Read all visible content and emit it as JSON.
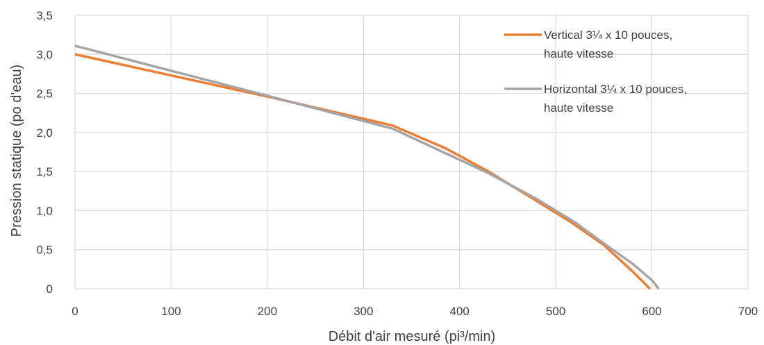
{
  "chart_data": {
    "type": "line",
    "xlabel": "Débit d'air mesuré (pi³/min)",
    "ylabel": "Pression statique (po d'eau)",
    "xlim": [
      0,
      700
    ],
    "ylim": [
      0,
      3.5
    ],
    "x_ticks": [
      "0",
      "100",
      "200",
      "300",
      "400",
      "500",
      "600",
      "700"
    ],
    "y_ticks": [
      "0",
      "0,5",
      "1,0",
      "1,5",
      "2,0",
      "2,5",
      "3,0",
      "3,5"
    ],
    "grid": true,
    "legend_position": "top-right",
    "series": [
      {
        "name": "Vertical 3¼ x 10 pouces, haute vitesse",
        "legend_lines": [
          "Vertical 3¼ x 10 pouces,",
          "haute vitesse"
        ],
        "color": "#ED7D31",
        "points": [
          [
            0,
            3.0
          ],
          [
            100,
            2.73
          ],
          [
            200,
            2.46
          ],
          [
            330,
            2.09
          ],
          [
            385,
            1.8
          ],
          [
            430,
            1.5
          ],
          [
            470,
            1.2
          ],
          [
            515,
            0.86
          ],
          [
            550,
            0.56
          ],
          [
            580,
            0.22
          ],
          [
            598,
            0.0
          ]
        ]
      },
      {
        "name": "Horizontal 3¼ x 10 pouces, haute vitesse",
        "legend_lines": [
          "Horizontal 3¼ x 10 pouces,",
          "haute vitesse"
        ],
        "color": "#A5A5A5",
        "points": [
          [
            0,
            3.11
          ],
          [
            100,
            2.79
          ],
          [
            200,
            2.47
          ],
          [
            330,
            2.05
          ],
          [
            430,
            1.48
          ],
          [
            480,
            1.15
          ],
          [
            520,
            0.85
          ],
          [
            550,
            0.58
          ],
          [
            580,
            0.32
          ],
          [
            600,
            0.11
          ],
          [
            607,
            0.0
          ]
        ]
      }
    ]
  }
}
